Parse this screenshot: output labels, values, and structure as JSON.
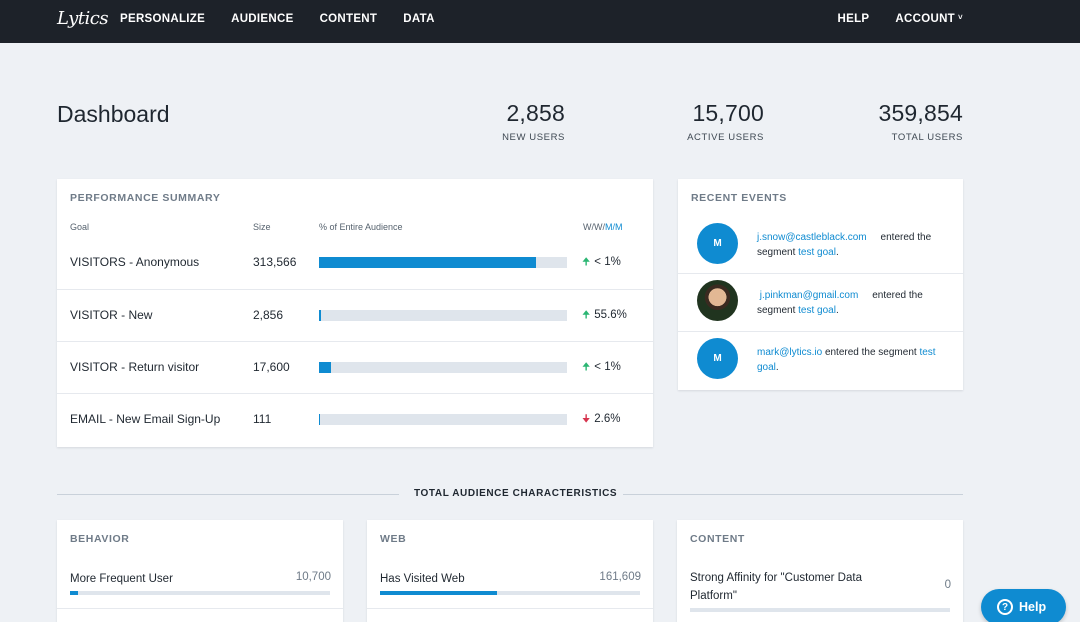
{
  "nav": {
    "logo": "Lytics",
    "links": [
      "PERSONALIZE",
      "AUDIENCE",
      "CONTENT",
      "DATA"
    ],
    "help": "HELP",
    "account": "ACCOUNT",
    "account_chevron": "˅"
  },
  "dashboard": {
    "title": "Dashboard",
    "stats": [
      {
        "value": "2,858",
        "label": "NEW USERS"
      },
      {
        "value": "15,700",
        "label": "ACTIVE USERS"
      },
      {
        "value": "359,854",
        "label": "TOTAL USERS"
      }
    ]
  },
  "performance": {
    "title": "PERFORMANCE SUMMARY",
    "headers": {
      "goal": "Goal",
      "size": "Size",
      "pct": "% of Entire Audience",
      "ww": "W/W/",
      "mm": "M/M"
    },
    "rows": [
      {
        "goal": "VISITORS - Anonymous",
        "size": "313,566",
        "fraction": 0.875,
        "direction": "up",
        "change": "< 1%"
      },
      {
        "goal": "VISITOR - New",
        "size": "2,856",
        "fraction": 0.008,
        "direction": "up",
        "change": "55.6%"
      },
      {
        "goal": "VISITOR - Return visitor",
        "size": "17,600",
        "fraction": 0.048,
        "direction": "up",
        "change": "< 1%"
      },
      {
        "goal": "EMAIL - New Email Sign-Up",
        "size": "111",
        "fraction": 0.0005,
        "direction": "down",
        "change": "2.6%"
      }
    ]
  },
  "events": {
    "title": "RECENT EVENTS",
    "items": [
      {
        "avatar": "M",
        "email": "j.snow@castleblack.com",
        "pre": "entered the segment",
        "segment": "test goal",
        "post": "."
      },
      {
        "avatar": "",
        "email": "j.pinkman@gmail.com",
        "pre": "entered the segment",
        "segment": "test goal",
        "post": "."
      },
      {
        "avatar": "M",
        "email": "mark@lytics.io",
        "pre": "entered the segment",
        "segment": "test goal",
        "post": "."
      }
    ]
  },
  "characteristics": {
    "title": "TOTAL AUDIENCE CHARACTERISTICS",
    "cards": [
      {
        "title": "BEHAVIOR",
        "label": "More Frequent User",
        "value": "10,700",
        "fraction": 0.03
      },
      {
        "title": "WEB",
        "label": "Has Visited Web",
        "value": "161,609",
        "fraction": 0.45
      },
      {
        "title": "CONTENT",
        "label": "Strong Affinity for \"Customer Data Platform\"",
        "value": "0",
        "fraction": 0
      }
    ]
  },
  "help_button": {
    "icon": "?",
    "label": "Help"
  },
  "colors": {
    "accent": "#0f8bd1",
    "nav_bg": "#1d2229",
    "up": "#2bb673",
    "down": "#d6334d"
  }
}
